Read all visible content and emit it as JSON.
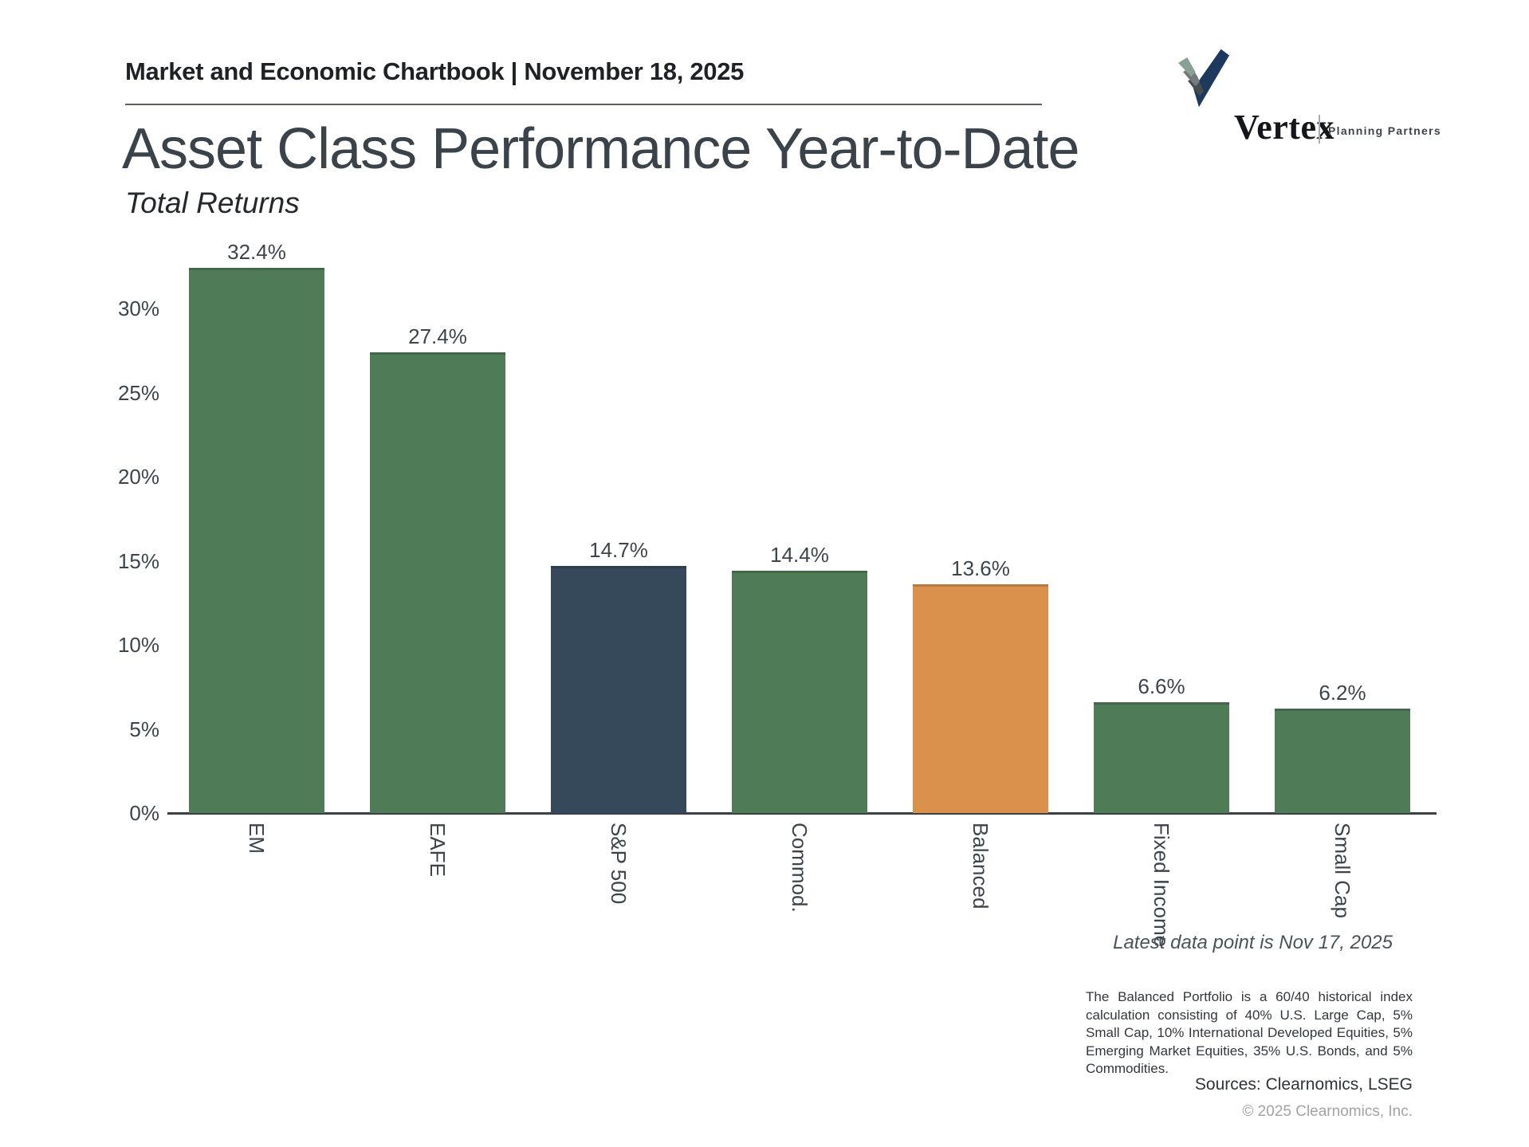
{
  "header": {
    "chartbook_title": "Market and Economic Chartbook | November 18, 2025",
    "logo": {
      "brand": "Vertex",
      "tagline": "Planning Partners",
      "icon": "vertex-checkmark-swoosh",
      "icon_colors": [
        "#8aa092",
        "#75797c",
        "#474c4f",
        "#1d3a5e"
      ]
    }
  },
  "title": "Asset Class Performance Year-to-Date",
  "subtitle": "Total Returns",
  "chart_data": {
    "type": "bar",
    "title": "Asset Class Performance Year-to-Date",
    "subtitle": "Total Returns",
    "categories": [
      "EM",
      "EAFE",
      "S&P 500",
      "Commod.",
      "Balanced",
      "Fixed Income",
      "Small Cap"
    ],
    "values": [
      32.4,
      27.4,
      14.7,
      14.4,
      13.6,
      6.6,
      6.2
    ],
    "value_labels": [
      "32.4%",
      "27.4%",
      "14.7%",
      "14.4%",
      "13.6%",
      "6.6%",
      "6.2%"
    ],
    "bar_colors": [
      "#4f7b56",
      "#4f7b56",
      "#35495b",
      "#4f7b56",
      "#d9914b",
      "#4f7b56",
      "#4f7b56"
    ],
    "xlabel": "",
    "ylabel": "",
    "ylim": [
      0,
      33.5
    ],
    "yticks": [
      0,
      5,
      10,
      15,
      20,
      25,
      30
    ],
    "ytick_labels": [
      "0%",
      "5%",
      "10%",
      "15%",
      "20%",
      "25%",
      "30%"
    ],
    "grid": false,
    "legend": "none",
    "bar_label_position": "above"
  },
  "annotations": {
    "latest_data": "Latest data point is Nov 17, 2025",
    "footnote": "The Balanced Portfolio is a 60/40 historical index calculation consisting of 40% U.S. Large Cap, 5% Small Cap, 10% International Developed Equities, 5% Emerging Market Equities, 35% U.S. Bonds, and 5% Commodities.",
    "sources": "Sources: Clearnomics, LSEG",
    "copyright": "© 2025 Clearnomics, Inc."
  },
  "colors": {
    "green": "#4f7b56",
    "navy": "#35495b",
    "orange": "#d9914b",
    "axis": "#3a4046",
    "text": "#3d444c",
    "muted": "#a3a3a3"
  }
}
